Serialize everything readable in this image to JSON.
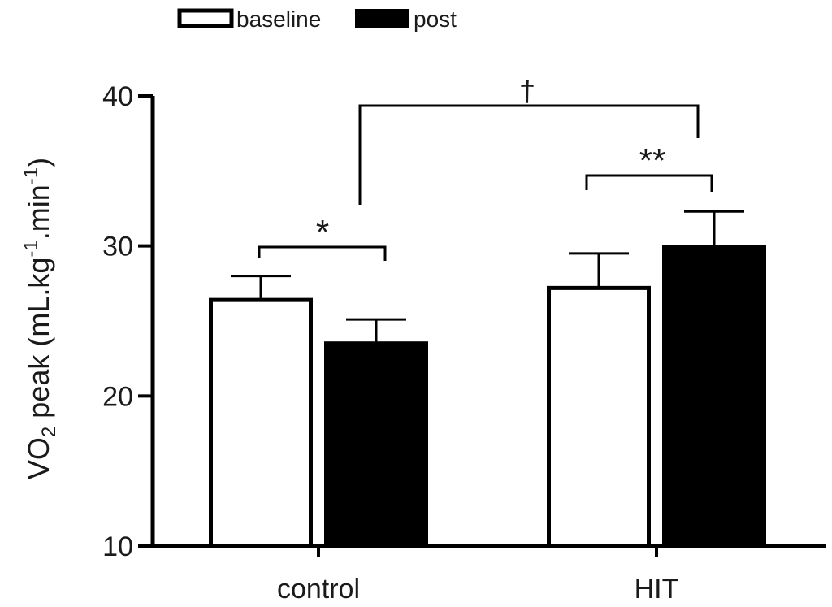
{
  "chart_data": {
    "type": "bar",
    "categories": [
      "control",
      "HIT"
    ],
    "series": [
      {
        "name": "baseline",
        "values": [
          26.4,
          27.2
        ],
        "errors": [
          1.6,
          2.3
        ],
        "fill": "#ffffff"
      },
      {
        "name": "post",
        "values": [
          23.5,
          29.9
        ],
        "errors": [
          1.6,
          2.4
        ],
        "fill": "#000000"
      }
    ],
    "ylabel": {
      "main": "VO",
      "sub": "2",
      "rest_a": " peak (mL.kg",
      "sup1": "-1",
      "rest_b": ".min",
      "sup2": "-1",
      "rest_c": ")"
    },
    "ylim": [
      10,
      40
    ],
    "yticks": [
      10,
      20,
      30,
      40
    ],
    "legend_position": "top",
    "annotations": {
      "control_sig": "*",
      "hit_sig": "**",
      "between_groups": "†"
    },
    "colors": {
      "axis": "#000000",
      "text": "#1a1a1a"
    }
  }
}
